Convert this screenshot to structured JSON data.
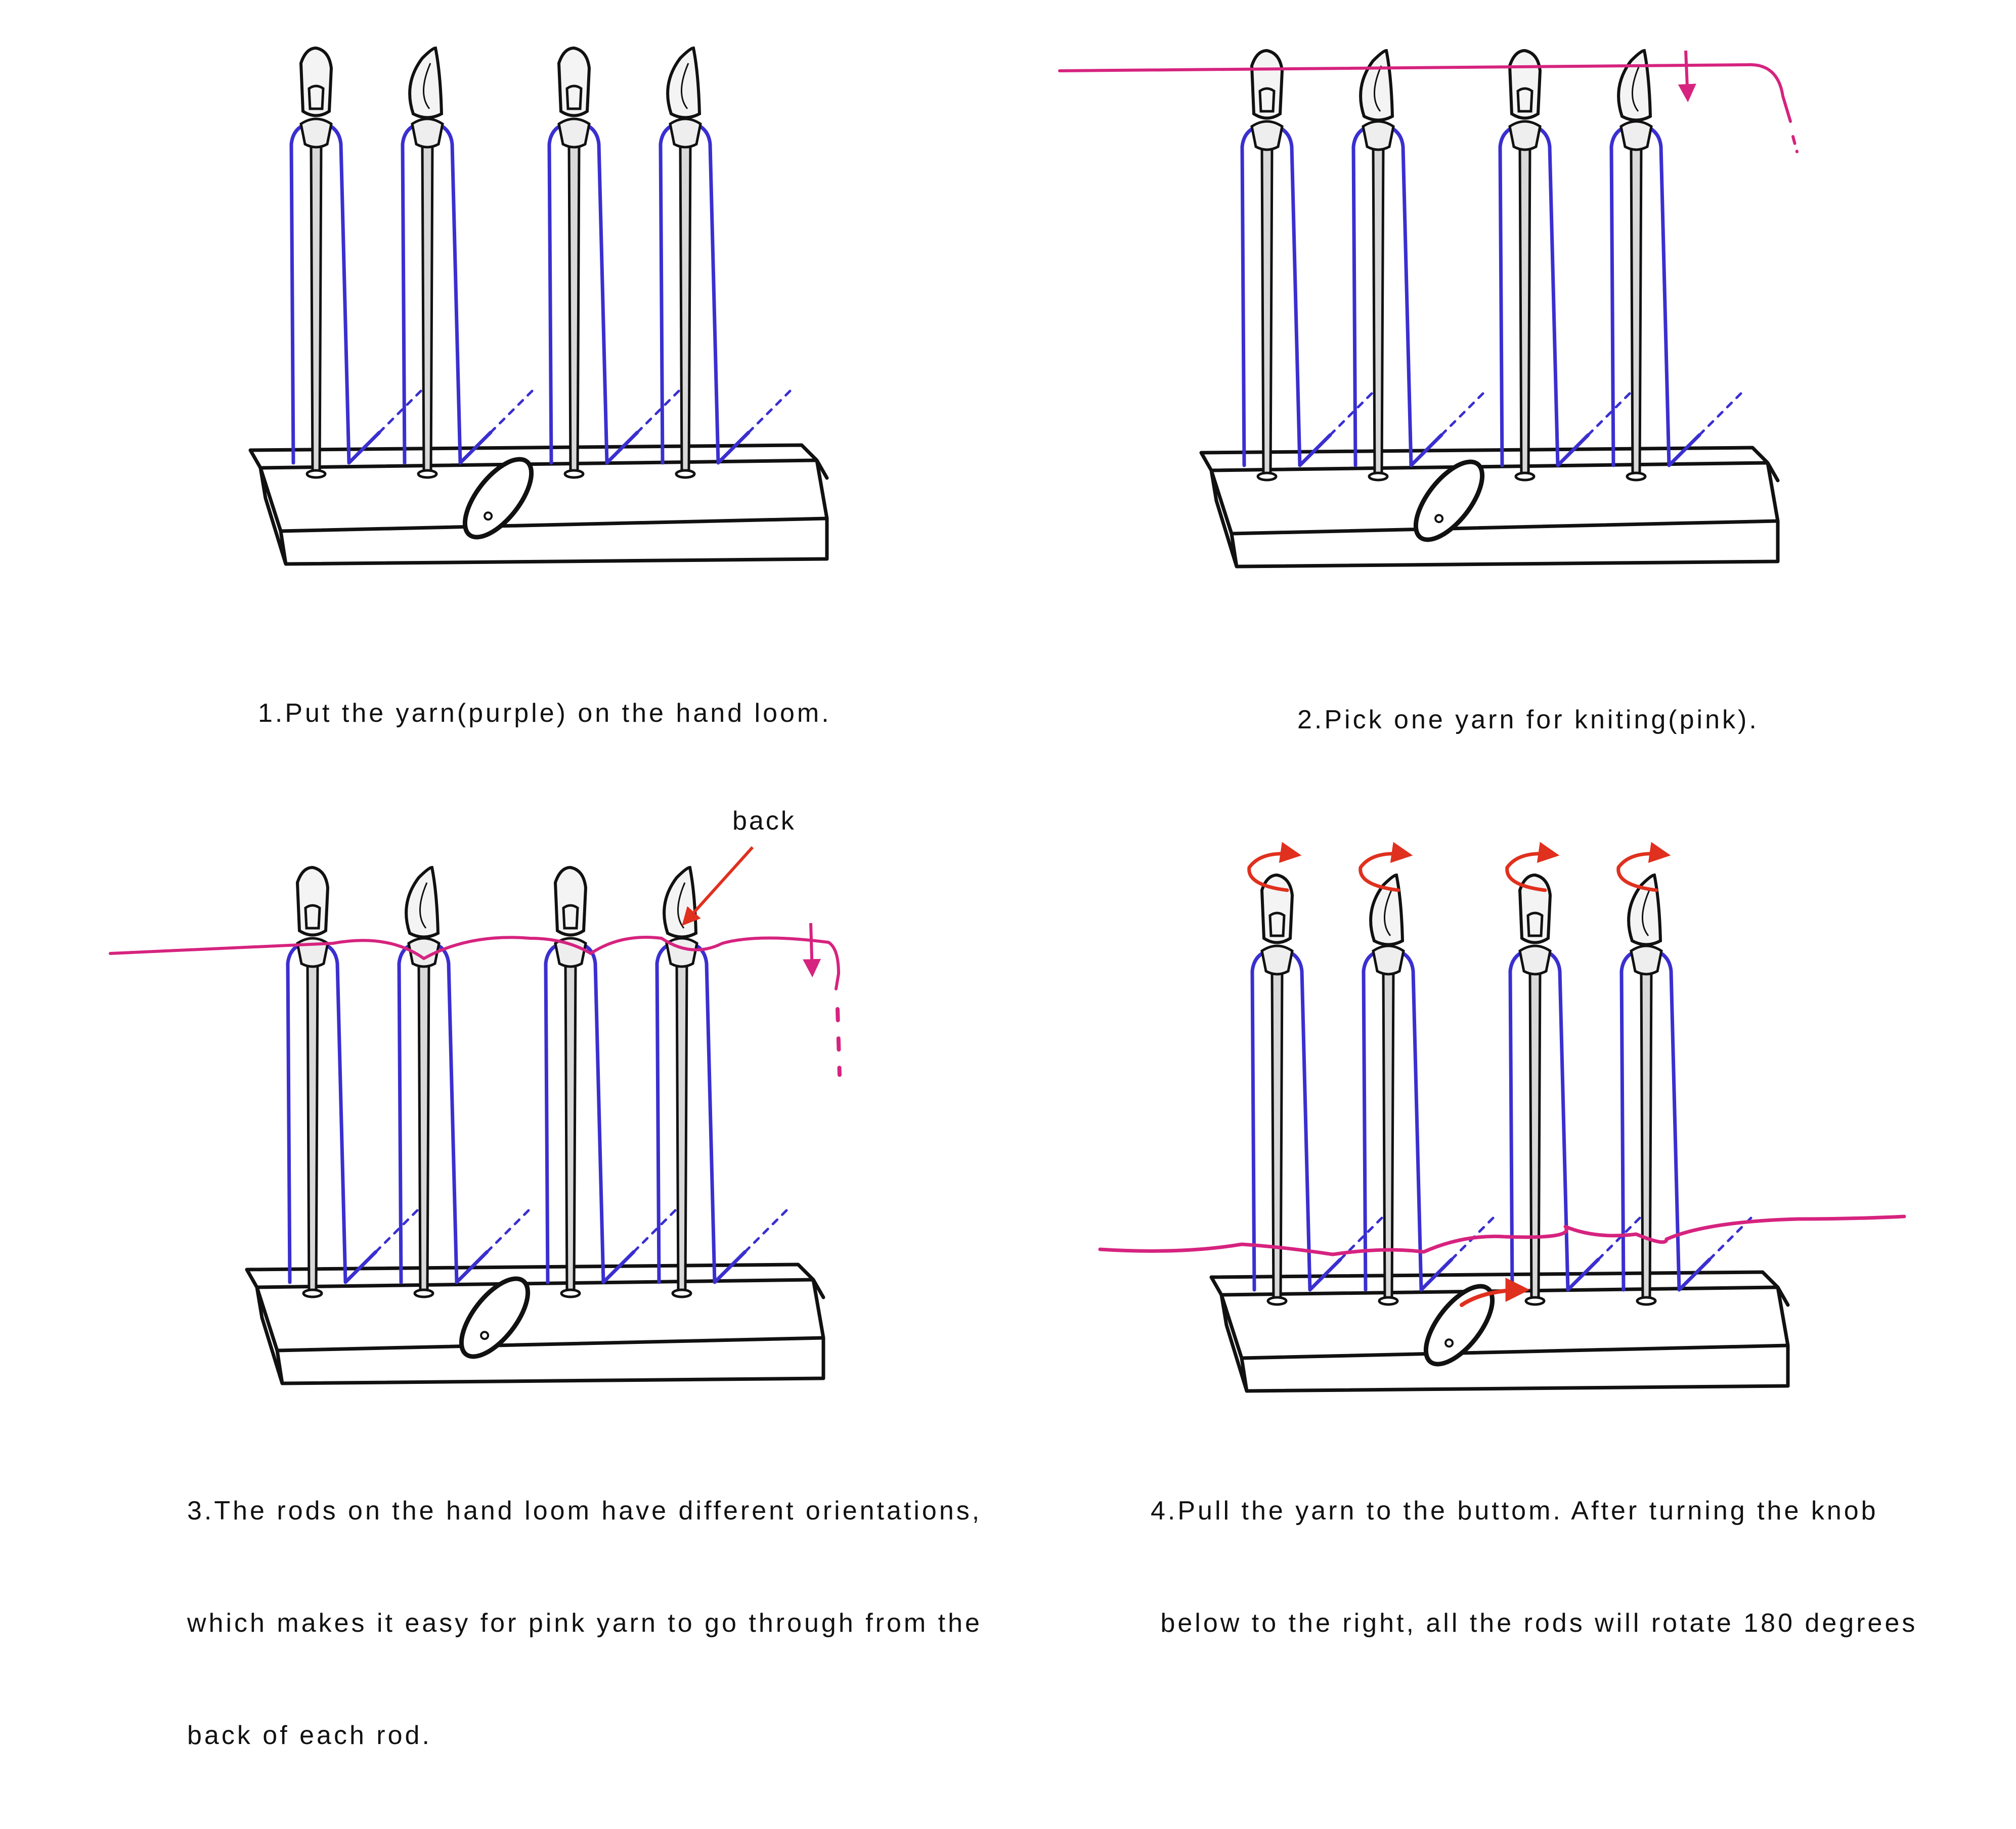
{
  "colors": {
    "purple_yarn": "#3a2fd0",
    "pink_yarn": "#d6237f",
    "red_arrow": "#e0301e",
    "ink": "#111111",
    "rod_fill": "#d9d9d9"
  },
  "steps": [
    {
      "caption_lines": [
        "1.Put the yarn(purple) on the hand loom."
      ]
    },
    {
      "caption_lines": [
        "2.Pick one yarn for kniting(pink)."
      ]
    },
    {
      "caption_lines": [
        "3.The rods on the hand loom have different orientations,",
        "which makes it easy for pink yarn to go through from the",
        "back of each rod."
      ],
      "annotation": "back"
    },
    {
      "caption_lines": [
        "4.Pull the yarn to the buttom. After turning the knob",
        " below to the right, all the rods will rotate 180 degrees"
      ]
    }
  ]
}
